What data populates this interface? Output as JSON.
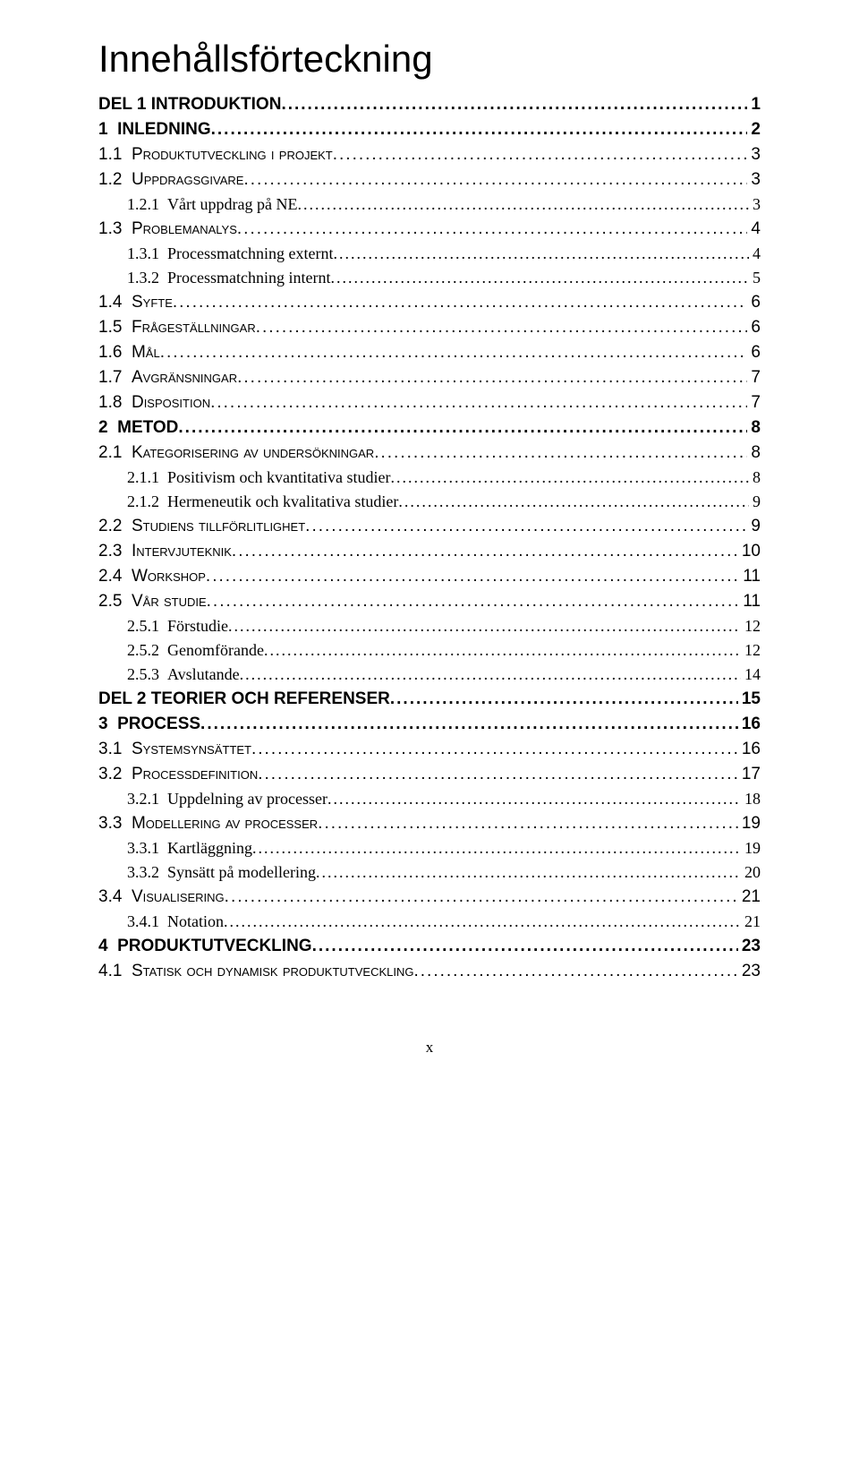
{
  "title": "Innehållsförteckning",
  "footer": "x",
  "entries": [
    {
      "level": "part",
      "num": "",
      "text": "Del 1 Introduktion",
      "page": "1"
    },
    {
      "level": "chap",
      "num": "1",
      "text": "Inledning",
      "page": "2"
    },
    {
      "level": "sec",
      "num": "1.1",
      "text": "Produktutveckling i projekt",
      "page": "3"
    },
    {
      "level": "sec",
      "num": "1.2",
      "text": "Uppdragsgivare",
      "page": "3"
    },
    {
      "level": "sub",
      "num": "1.2.1",
      "text": "Vårt uppdrag på NE",
      "page": "3"
    },
    {
      "level": "sec",
      "num": "1.3",
      "text": "Problemanalys",
      "page": "4"
    },
    {
      "level": "sub",
      "num": "1.3.1",
      "text": "Processmatchning externt",
      "page": "4"
    },
    {
      "level": "sub",
      "num": "1.3.2",
      "text": "Processmatchning internt",
      "page": "5"
    },
    {
      "level": "sec",
      "num": "1.4",
      "text": "Syfte",
      "page": "6"
    },
    {
      "level": "sec",
      "num": "1.5",
      "text": "Frågeställningar",
      "page": "6"
    },
    {
      "level": "sec",
      "num": "1.6",
      "text": "Mål",
      "page": "6"
    },
    {
      "level": "sec",
      "num": "1.7",
      "text": "Avgränsningar",
      "page": "7"
    },
    {
      "level": "sec",
      "num": "1.8",
      "text": "Disposition",
      "page": "7"
    },
    {
      "level": "chap",
      "num": "2",
      "text": "Metod",
      "page": "8"
    },
    {
      "level": "sec",
      "num": "2.1",
      "text": "Kategorisering av undersökningar",
      "page": "8"
    },
    {
      "level": "sub",
      "num": "2.1.1",
      "text": "Positivism och kvantitativa studier",
      "page": "8"
    },
    {
      "level": "sub",
      "num": "2.1.2",
      "text": "Hermeneutik och kvalitativa studier",
      "page": "9"
    },
    {
      "level": "sec",
      "num": "2.2",
      "text": "Studiens tillförlitlighet",
      "page": "9"
    },
    {
      "level": "sec",
      "num": "2.3",
      "text": "Intervjuteknik",
      "page": "10"
    },
    {
      "level": "sec",
      "num": "2.4",
      "text": "Workshop",
      "page": "11"
    },
    {
      "level": "sec",
      "num": "2.5",
      "text": "Vår studie",
      "page": "11"
    },
    {
      "level": "sub",
      "num": "2.5.1",
      "text": "Förstudie",
      "page": "12"
    },
    {
      "level": "sub",
      "num": "2.5.2",
      "text": "Genomförande",
      "page": "12"
    },
    {
      "level": "sub",
      "num": "2.5.3",
      "text": "Avslutande",
      "page": "14"
    },
    {
      "level": "part",
      "num": "",
      "text": "Del 2 Teorier och referenser",
      "page": "15"
    },
    {
      "level": "chap",
      "num": "3",
      "text": "Process",
      "page": "16"
    },
    {
      "level": "sec",
      "num": "3.1",
      "text": "Systemsynsättet",
      "page": "16"
    },
    {
      "level": "sec",
      "num": "3.2",
      "text": "Processdefinition",
      "page": "17"
    },
    {
      "level": "sub",
      "num": "3.2.1",
      "text": "Uppdelning av processer",
      "page": "18"
    },
    {
      "level": "sec",
      "num": "3.3",
      "text": "Modellering av processer",
      "page": "19"
    },
    {
      "level": "sub",
      "num": "3.3.1",
      "text": "Kartläggning",
      "page": "19"
    },
    {
      "level": "sub",
      "num": "3.3.2",
      "text": "Synsätt på modellering",
      "page": "20"
    },
    {
      "level": "sec",
      "num": "3.4",
      "text": "Visualisering",
      "page": "21"
    },
    {
      "level": "sub",
      "num": "3.4.1",
      "text": "Notation",
      "page": "21"
    },
    {
      "level": "chap",
      "num": "4",
      "text": "Produktutveckling",
      "page": "23"
    },
    {
      "level": "sec",
      "num": "4.1",
      "text": "Statisk och dynamisk produktutveckling",
      "page": "23"
    }
  ]
}
